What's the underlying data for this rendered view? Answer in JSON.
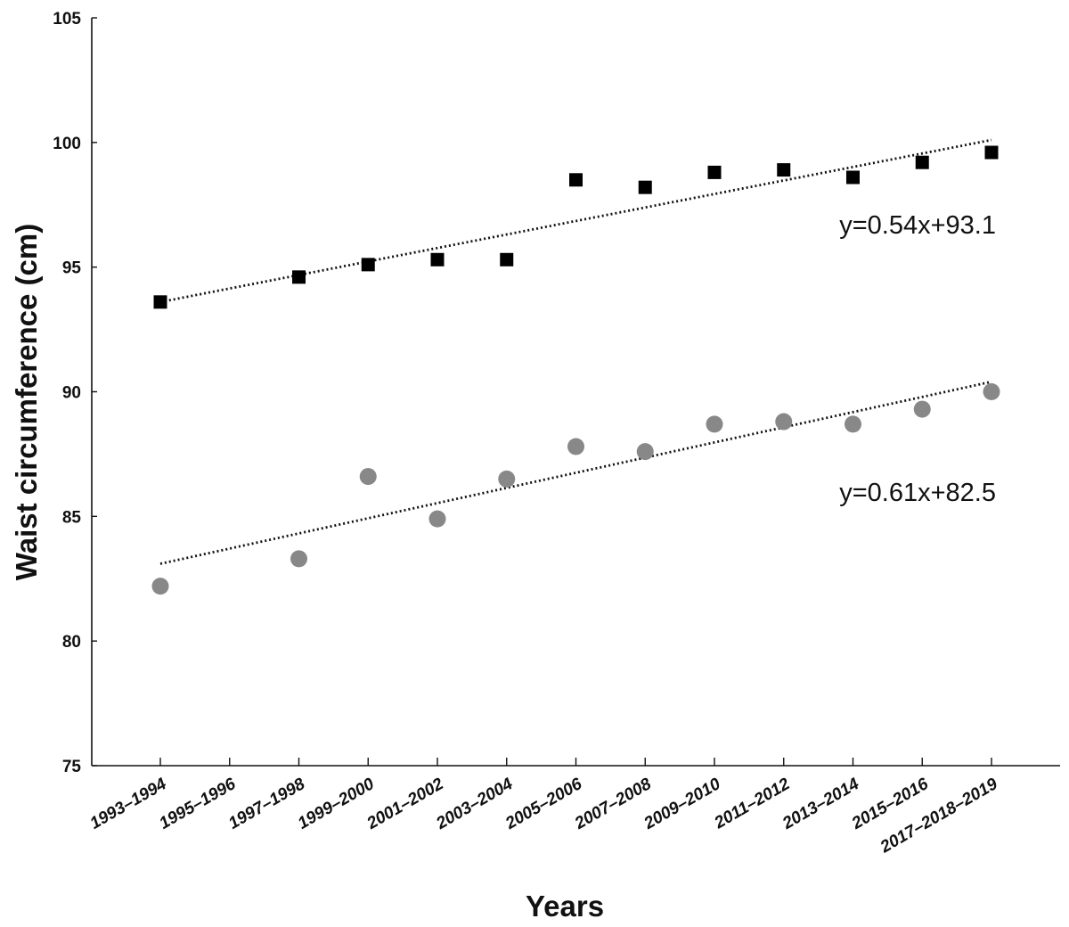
{
  "chart_data": {
    "type": "scatter",
    "title": "",
    "xlabel": "Years",
    "ylabel": "Waist circumference (cm)",
    "ylim": [
      75,
      105
    ],
    "yticks": [
      75,
      80,
      85,
      90,
      95,
      100,
      105
    ],
    "categories": [
      "1993–1994",
      "1995–1996",
      "1997–1998",
      "1999–2000",
      "2001–2002",
      "2003–2004",
      "2005–2006",
      "2007–2008",
      "2009–2010",
      "2011–2012",
      "2013–2014",
      "2015–2016",
      "2017–2018–2019"
    ],
    "grid": false,
    "legend": "none",
    "series": [
      {
        "marker": "square",
        "color": "#000000",
        "values": [
          93.6,
          null,
          94.6,
          95.1,
          95.3,
          95.3,
          98.5,
          98.2,
          98.8,
          98.9,
          98.6,
          99.2,
          99.6
        ],
        "trendline": {
          "equation": "y=0.54x+93.1",
          "start": 93.6,
          "end": 100.1
        }
      },
      {
        "marker": "circle",
        "color": "#888888",
        "values": [
          82.2,
          null,
          83.3,
          86.6,
          84.9,
          86.5,
          87.8,
          87.6,
          88.7,
          88.8,
          88.7,
          89.3,
          90.0
        ],
        "trendline": {
          "equation": "y=0.61x+82.5",
          "start": 83.1,
          "end": 90.4
        }
      }
    ]
  }
}
